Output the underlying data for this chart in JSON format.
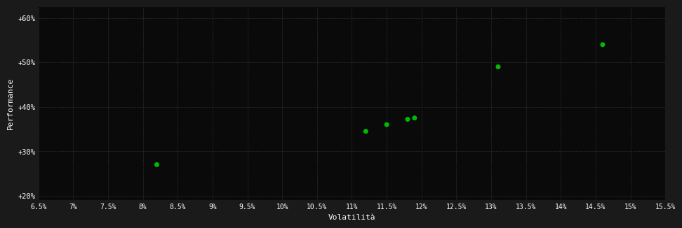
{
  "points_x": [
    0.082,
    0.112,
    0.115,
    0.118,
    0.119,
    0.131,
    0.146
  ],
  "points_y": [
    0.27,
    0.345,
    0.36,
    0.372,
    0.375,
    0.49,
    0.54
  ],
  "point_color": "#00bb00",
  "background_color": "#1a1a1a",
  "plot_bg_color": "#0a0a0a",
  "grid_color": "#2d2d2d",
  "tick_color": "#ffffff",
  "label_color": "#ffffff",
  "xlabel": "Volatilità",
  "ylabel": "Performance",
  "xlim": [
    0.065,
    0.155
  ],
  "ylim": [
    0.19,
    0.625
  ],
  "xticks": [
    0.065,
    0.07,
    0.075,
    0.08,
    0.085,
    0.09,
    0.095,
    0.1,
    0.105,
    0.11,
    0.115,
    0.12,
    0.125,
    0.13,
    0.135,
    0.14,
    0.145,
    0.15,
    0.155
  ],
  "xtick_labels": [
    "6.5%",
    "7%",
    "7.5%",
    "8%",
    "8.5%",
    "9%",
    "9.5%",
    "10%",
    "10.5%",
    "11%",
    "11.5%",
    "12%",
    "12.5%",
    "13%",
    "13.5%",
    "14%",
    "14.5%",
    "15%",
    "15.5%"
  ],
  "yticks": [
    0.2,
    0.3,
    0.4,
    0.5,
    0.6
  ],
  "ytick_labels": [
    "+20%",
    "+30%",
    "+40%",
    "+50%",
    "+60%"
  ],
  "marker_size": 5
}
